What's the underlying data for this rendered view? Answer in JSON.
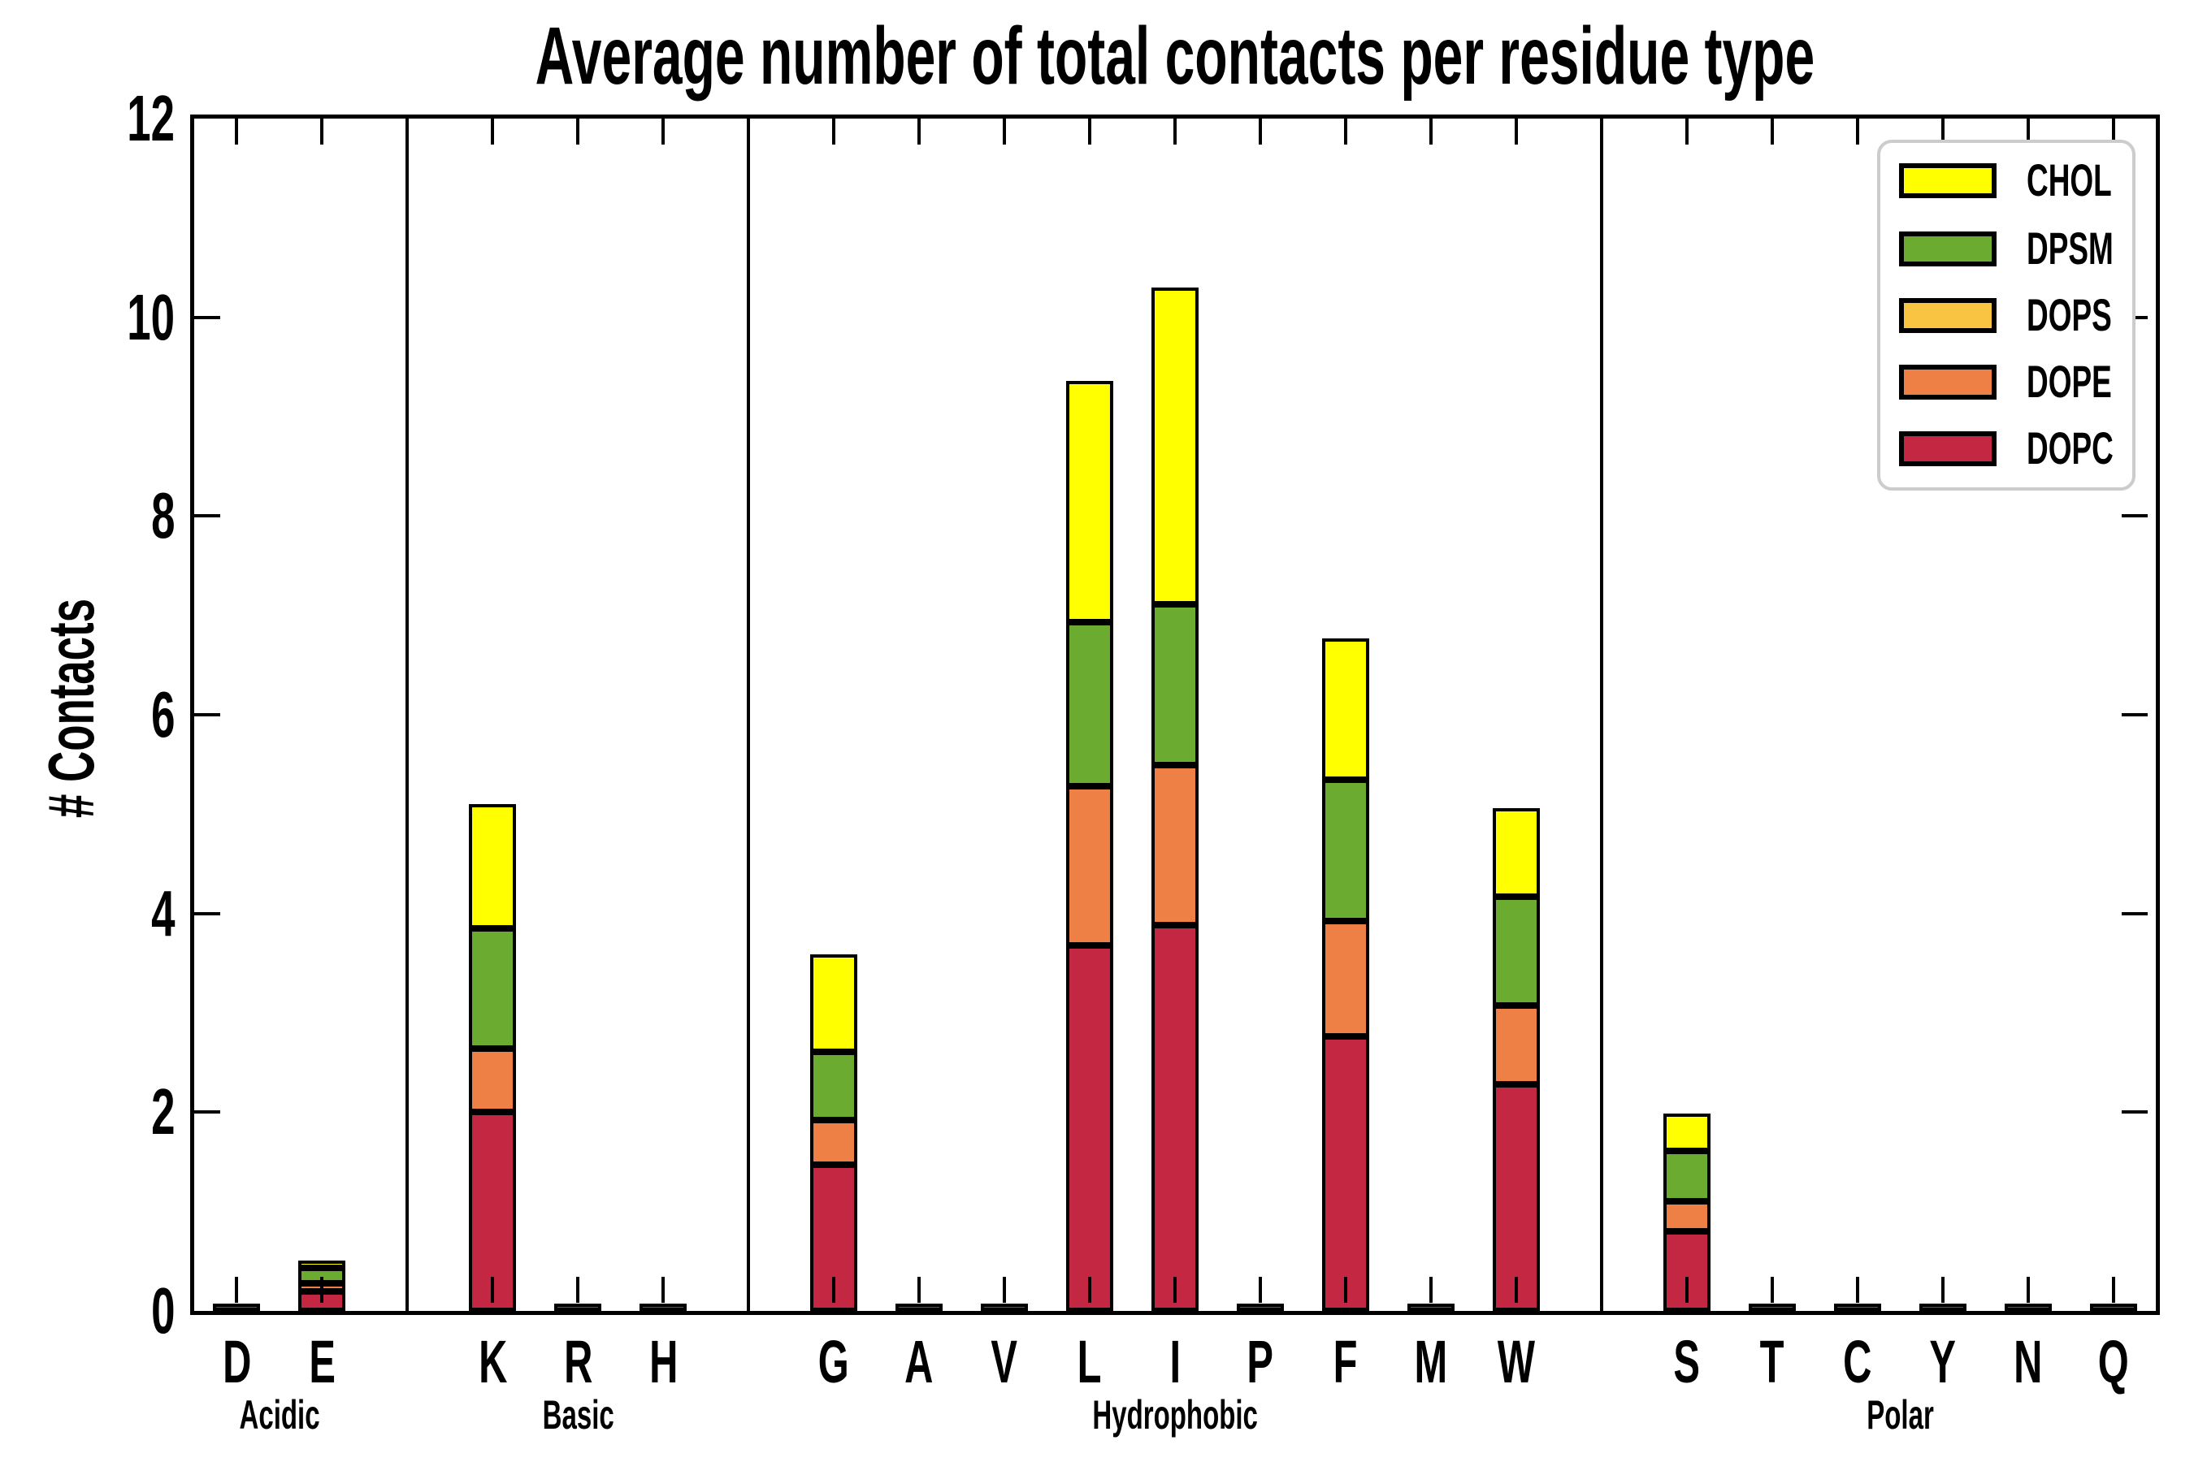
{
  "figure": {
    "title": "Average number of total contacts per residue type",
    "y_axis_label": "# Contacts"
  },
  "axes": {
    "y_tick_labels": [
      "0",
      "2",
      "4",
      "6",
      "8",
      "10",
      "12"
    ],
    "y_ticks": [
      0,
      2,
      4,
      6,
      8,
      10,
      12
    ],
    "y_min": 0,
    "y_max": 12
  },
  "legend": {
    "position": "upper right",
    "entries": [
      {
        "label": "CHOL",
        "color": "#FFFF00"
      },
      {
        "label": "DPSM",
        "color": "#6BAC30"
      },
      {
        "label": "DOPS",
        "color": "#F9C441"
      },
      {
        "label": "DOPE",
        "color": "#EE8045"
      },
      {
        "label": "DOPC",
        "color": "#C42742"
      }
    ]
  },
  "chart_data": {
    "type": "bar",
    "stacked": true,
    "title": "Average number of total contacts per residue type",
    "xlabel": "",
    "ylabel": "# Contacts",
    "ylim": [
      0,
      12
    ],
    "grid": false,
    "legend_position": "upper right",
    "series_order_bottom_to_top": [
      "DOPC",
      "DOPE",
      "DOPS",
      "DPSM",
      "CHOL"
    ],
    "series_colors": {
      "CHOL": "#FFFF00",
      "DPSM": "#6BAC30",
      "DOPS": "#F9C441",
      "DOPE": "#EE8045",
      "DOPC": "#C42742"
    },
    "groups": [
      {
        "label": "Acidic",
        "residues": [
          {
            "name": "D",
            "DOPC": 0.02,
            "DOPE": 0,
            "DOPS": 0,
            "DPSM": 0,
            "CHOL": 0
          },
          {
            "name": "E",
            "DOPC": 0.2,
            "DOPE": 0.08,
            "DOPS": 0,
            "DPSM": 0.15,
            "CHOL": 0.07
          }
        ]
      },
      {
        "label": "Basic",
        "residues": [
          {
            "name": "K",
            "DOPC": 2.0,
            "DOPE": 0.64,
            "DOPS": 0,
            "DPSM": 1.21,
            "CHOL": 1.25
          },
          {
            "name": "R",
            "DOPC": 0.02,
            "DOPE": 0,
            "DOPS": 0,
            "DPSM": 0,
            "CHOL": 0
          },
          {
            "name": "H",
            "DOPC": 0.02,
            "DOPE": 0,
            "DOPS": 0,
            "DPSM": 0,
            "CHOL": 0
          }
        ]
      },
      {
        "label": "Hydrophobic",
        "residues": [
          {
            "name": "G",
            "DOPC": 1.47,
            "DOPE": 0.45,
            "DOPS": 0,
            "DPSM": 0.69,
            "CHOL": 0.98
          },
          {
            "name": "A",
            "DOPC": 0.02,
            "DOPE": 0,
            "DOPS": 0,
            "DPSM": 0,
            "CHOL": 0
          },
          {
            "name": "V",
            "DOPC": 0.02,
            "DOPE": 0,
            "DOPS": 0,
            "DPSM": 0,
            "CHOL": 0
          },
          {
            "name": "L",
            "DOPC": 3.68,
            "DOPE": 1.6,
            "DOPS": 0,
            "DPSM": 1.65,
            "CHOL": 2.43
          },
          {
            "name": "I",
            "DOPC": 3.88,
            "DOPE": 1.61,
            "DOPS": 0,
            "DPSM": 1.62,
            "CHOL": 3.19
          },
          {
            "name": "P",
            "DOPC": 0.02,
            "DOPE": 0,
            "DOPS": 0,
            "DPSM": 0,
            "CHOL": 0
          },
          {
            "name": "F",
            "DOPC": 2.76,
            "DOPE": 1.16,
            "DOPS": 0,
            "DPSM": 1.43,
            "CHOL": 1.42
          },
          {
            "name": "M",
            "DOPC": 0.02,
            "DOPE": 0,
            "DOPS": 0,
            "DPSM": 0,
            "CHOL": 0
          },
          {
            "name": "W",
            "DOPC": 2.28,
            "DOPE": 0.79,
            "DOPS": 0,
            "DPSM": 1.1,
            "CHOL": 0.89
          }
        ]
      },
      {
        "label": "Polar",
        "residues": [
          {
            "name": "S",
            "DOPC": 0.8,
            "DOPE": 0.3,
            "DOPS": 0,
            "DPSM": 0.51,
            "CHOL": 0.38
          },
          {
            "name": "T",
            "DOPC": 0.02,
            "DOPE": 0,
            "DOPS": 0,
            "DPSM": 0,
            "CHOL": 0
          },
          {
            "name": "C",
            "DOPC": 0.02,
            "DOPE": 0,
            "DOPS": 0,
            "DPSM": 0,
            "CHOL": 0
          },
          {
            "name": "Y",
            "DOPC": 0.02,
            "DOPE": 0,
            "DOPS": 0,
            "DPSM": 0,
            "CHOL": 0
          },
          {
            "name": "N",
            "DOPC": 0.02,
            "DOPE": 0,
            "DOPS": 0,
            "DPSM": 0,
            "CHOL": 0
          },
          {
            "name": "Q",
            "DOPC": 0.02,
            "DOPE": 0,
            "DOPS": 0,
            "DPSM": 0,
            "CHOL": 0
          }
        ]
      }
    ]
  }
}
